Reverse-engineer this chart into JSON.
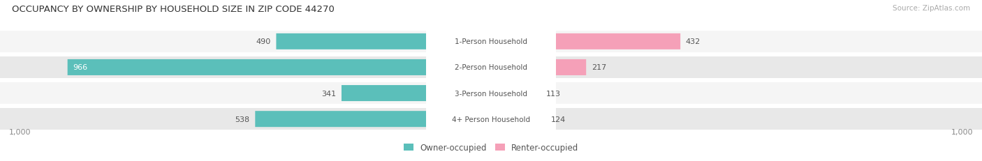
{
  "title": "OCCUPANCY BY OWNERSHIP BY HOUSEHOLD SIZE IN ZIP CODE 44270",
  "source": "Source: ZipAtlas.com",
  "categories": [
    "1-Person Household",
    "2-Person Household",
    "3-Person Household",
    "4+ Person Household"
  ],
  "owner_values": [
    490,
    966,
    341,
    538
  ],
  "renter_values": [
    432,
    217,
    113,
    124
  ],
  "owner_color": "#5bbfba",
  "renter_color": "#f5a0b8",
  "row_bg_colors": [
    "#f5f5f5",
    "#e8e8e8",
    "#f5f5f5",
    "#e8e8e8"
  ],
  "max_scale": 1000,
  "label_color": "#555555",
  "title_color": "#333333",
  "center_label_color": "#555555",
  "axis_label_color": "#888888",
  "legend_owner": "Owner-occupied",
  "legend_renter": "Renter-occupied",
  "figsize": [
    14.06,
    2.32
  ],
  "dpi": 100
}
